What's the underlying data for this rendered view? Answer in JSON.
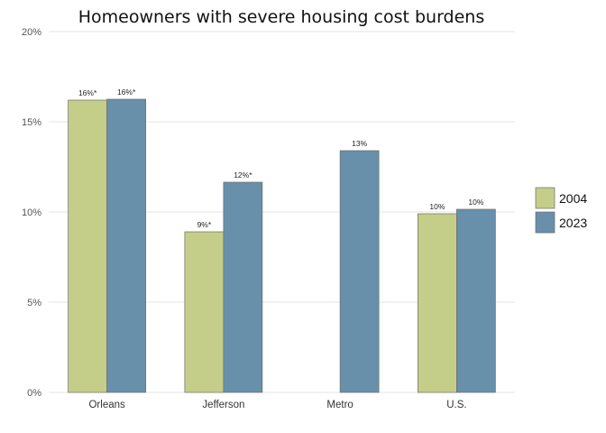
{
  "chart_data": {
    "type": "bar",
    "title": "Homeowners with severe housing cost burdens",
    "categories": [
      "Orleans",
      "Jefferson",
      "Metro",
      "U.S."
    ],
    "series": [
      {
        "name": "2004",
        "color": "#c5ce89",
        "values": [
          16.2,
          8.9,
          0,
          9.9
        ],
        "labels": [
          "16%*",
          "9%*",
          "",
          "10%"
        ]
      },
      {
        "name": "2023",
        "color": "#6890aa",
        "values": [
          16.25,
          11.65,
          13.4,
          10.15
        ],
        "labels": [
          "16%*",
          "12%*",
          "13%",
          "10%"
        ]
      }
    ],
    "ylim": [
      0,
      20
    ],
    "yticks": [
      0,
      5,
      10,
      15,
      20
    ],
    "yticklabels": [
      "0%",
      "5%",
      "10%",
      "15%",
      "20%"
    ],
    "xlabel": "",
    "ylabel": "",
    "grid": true,
    "legend": "right"
  }
}
